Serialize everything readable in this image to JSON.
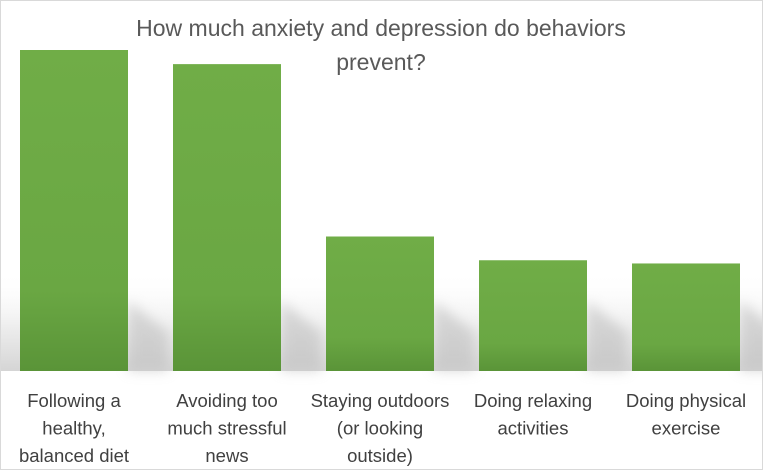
{
  "chart_data": {
    "type": "bar",
    "title_lines": [
      "How much anxiety and depression do behaviors",
      "prevent?"
    ],
    "categories": [
      [
        "Following a",
        "healthy,",
        "balanced diet"
      ],
      [
        "Avoiding too",
        "much stressful",
        "news"
      ],
      [
        "Staying outdoors",
        "(or looking",
        "outside)"
      ],
      [
        "Doing relaxing",
        "activities"
      ],
      [
        "Doing physical",
        "exercise"
      ]
    ],
    "values": [
      100,
      95.6,
      41.9,
      34.5,
      33.5
    ],
    "ylim": [
      0,
      100
    ],
    "xlabel": "",
    "ylabel": "",
    "grid": false,
    "legend": "none",
    "bar_color": "#70ad47",
    "bar_color_dark": "#5a9438",
    "title_color": "#595959",
    "label_color": "#404040"
  }
}
